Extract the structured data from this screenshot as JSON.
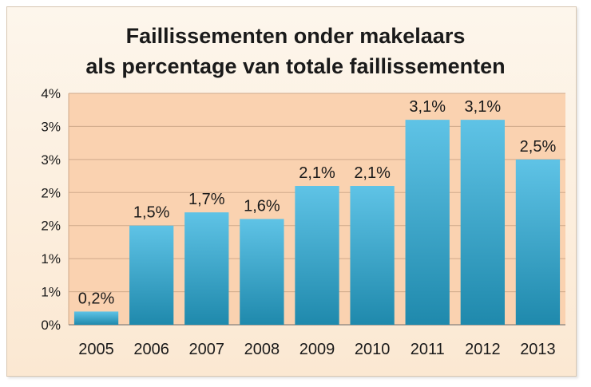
{
  "chart_data": {
    "type": "bar",
    "title_lines": [
      "Faillissementen onder makelaars",
      "als percentage van totale faillissementen"
    ],
    "categories": [
      "2005",
      "2006",
      "2007",
      "2008",
      "2009",
      "2010",
      "2011",
      "2012",
      "2013"
    ],
    "values": [
      0.2,
      1.5,
      1.7,
      1.6,
      2.1,
      2.1,
      3.1,
      3.1,
      2.5
    ],
    "data_labels": [
      "0,2%",
      "1,5%",
      "1,7%",
      "1,6%",
      "2,1%",
      "2,1%",
      "3,1%",
      "3,1%",
      "2,5%"
    ],
    "y_tick_labels": [
      "0%",
      "1%",
      "1%",
      "2%",
      "2%",
      "3%",
      "3%",
      "4%"
    ],
    "ylim": [
      0,
      3.5
    ],
    "xlabel": "",
    "ylabel": "",
    "grid": true,
    "legend": "none"
  },
  "colors": {
    "bar_light": "#5fc3e6",
    "bar_dark": "#1f89ac",
    "plot_bg": "#fad2b0",
    "grid": "#cfa98a",
    "text": "#1a1a1a"
  }
}
